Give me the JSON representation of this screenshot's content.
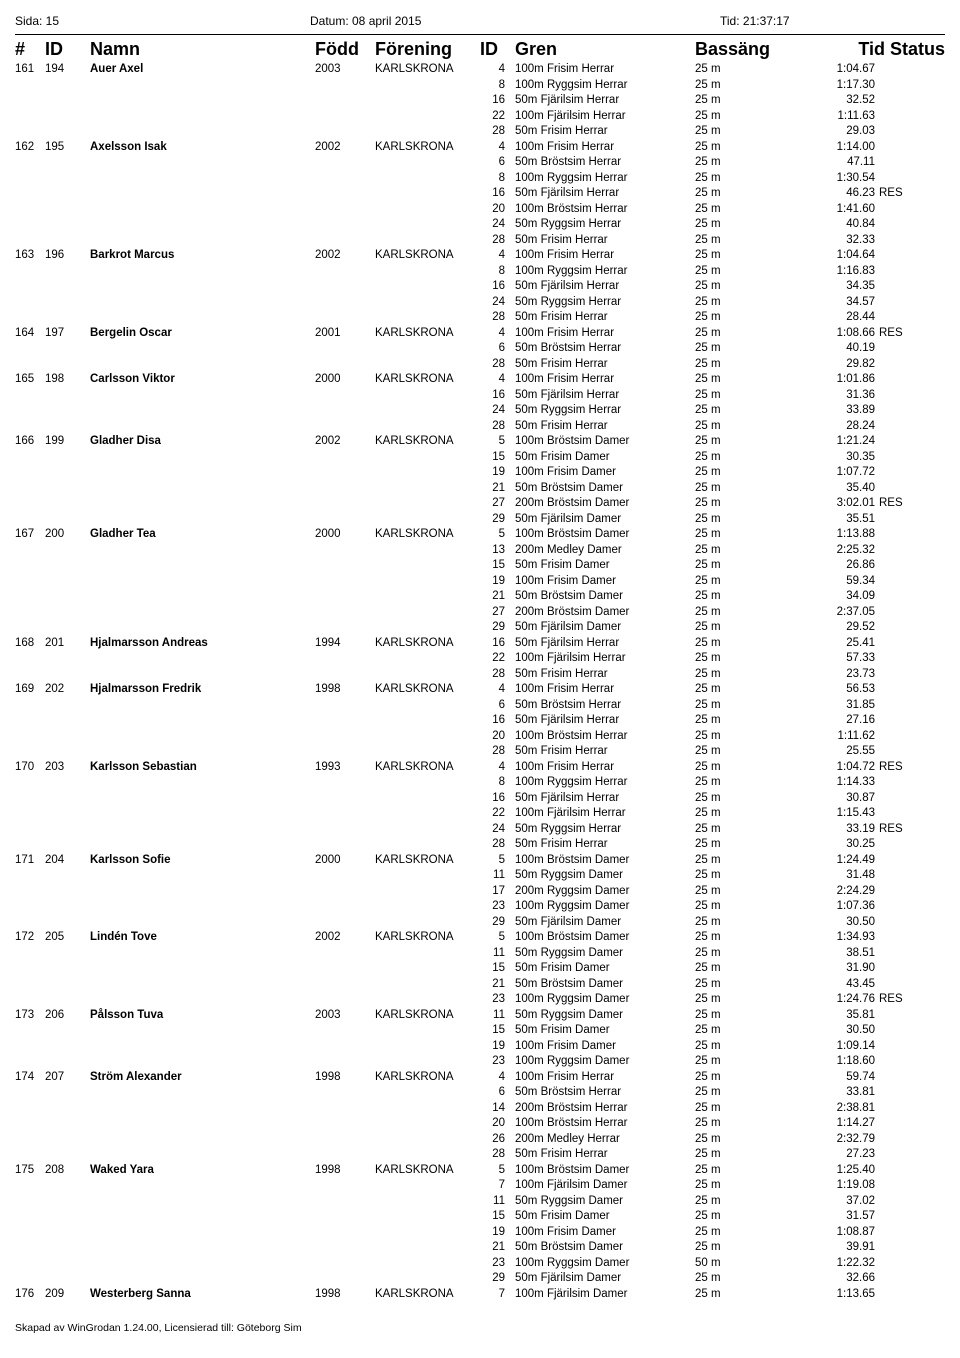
{
  "header": {
    "sida": "Sida: 15",
    "datum": "Datum: 08 april 2015",
    "tid": "Tid: 21:37:17"
  },
  "columns": {
    "num": "#",
    "id": "ID",
    "namn": "Namn",
    "fodd": "Född",
    "foren": "Förening",
    "id2": "ID",
    "gren": "Gren",
    "bass": "Bassäng",
    "tidstatus": "Tid Status"
  },
  "footer": "Skapad av WinGrodan 1.24.00, Licensierad till: Göteborg Sim",
  "people": [
    {
      "num": "161",
      "id": "194",
      "namn": "Auer Axel",
      "fodd": "2003",
      "foren": "KARLSKRONA",
      "events": [
        {
          "id": "4",
          "gren": "100m Frisim Herrar",
          "bass": "25 m",
          "tid": "1:04.67",
          "status": ""
        },
        {
          "id": "8",
          "gren": "100m Ryggsim Herrar",
          "bass": "25 m",
          "tid": "1:17.30",
          "status": ""
        },
        {
          "id": "16",
          "gren": "50m Fjärilsim Herrar",
          "bass": "25 m",
          "tid": "32.52",
          "status": ""
        },
        {
          "id": "22",
          "gren": "100m Fjärilsim Herrar",
          "bass": "25 m",
          "tid": "1:11.63",
          "status": ""
        },
        {
          "id": "28",
          "gren": "50m Frisim Herrar",
          "bass": "25 m",
          "tid": "29.03",
          "status": ""
        }
      ]
    },
    {
      "num": "162",
      "id": "195",
      "namn": "Axelsson Isak",
      "fodd": "2002",
      "foren": "KARLSKRONA",
      "events": [
        {
          "id": "4",
          "gren": "100m Frisim Herrar",
          "bass": "25 m",
          "tid": "1:14.00",
          "status": ""
        },
        {
          "id": "6",
          "gren": "50m Bröstsim Herrar",
          "bass": "25 m",
          "tid": "47.11",
          "status": ""
        },
        {
          "id": "8",
          "gren": "100m Ryggsim Herrar",
          "bass": "25 m",
          "tid": "1:30.54",
          "status": ""
        },
        {
          "id": "16",
          "gren": "50m Fjärilsim Herrar",
          "bass": "25 m",
          "tid": "46.23",
          "status": "RES"
        },
        {
          "id": "20",
          "gren": "100m Bröstsim Herrar",
          "bass": "25 m",
          "tid": "1:41.60",
          "status": ""
        },
        {
          "id": "24",
          "gren": "50m Ryggsim Herrar",
          "bass": "25 m",
          "tid": "40.84",
          "status": ""
        },
        {
          "id": "28",
          "gren": "50m Frisim Herrar",
          "bass": "25 m",
          "tid": "32.33",
          "status": ""
        }
      ]
    },
    {
      "num": "163",
      "id": "196",
      "namn": "Barkrot Marcus",
      "fodd": "2002",
      "foren": "KARLSKRONA",
      "events": [
        {
          "id": "4",
          "gren": "100m Frisim Herrar",
          "bass": "25 m",
          "tid": "1:04.64",
          "status": ""
        },
        {
          "id": "8",
          "gren": "100m Ryggsim Herrar",
          "bass": "25 m",
          "tid": "1:16.83",
          "status": ""
        },
        {
          "id": "16",
          "gren": "50m Fjärilsim Herrar",
          "bass": "25 m",
          "tid": "34.35",
          "status": ""
        },
        {
          "id": "24",
          "gren": "50m Ryggsim Herrar",
          "bass": "25 m",
          "tid": "34.57",
          "status": ""
        },
        {
          "id": "28",
          "gren": "50m Frisim Herrar",
          "bass": "25 m",
          "tid": "28.44",
          "status": ""
        }
      ]
    },
    {
      "num": "164",
      "id": "197",
      "namn": "Bergelin Oscar",
      "fodd": "2001",
      "foren": "KARLSKRONA",
      "events": [
        {
          "id": "4",
          "gren": "100m Frisim Herrar",
          "bass": "25 m",
          "tid": "1:08.66",
          "status": "RES"
        },
        {
          "id": "6",
          "gren": "50m Bröstsim Herrar",
          "bass": "25 m",
          "tid": "40.19",
          "status": ""
        },
        {
          "id": "28",
          "gren": "50m Frisim Herrar",
          "bass": "25 m",
          "tid": "29.82",
          "status": ""
        }
      ]
    },
    {
      "num": "165",
      "id": "198",
      "namn": "Carlsson Viktor",
      "fodd": "2000",
      "foren": "KARLSKRONA",
      "events": [
        {
          "id": "4",
          "gren": "100m Frisim Herrar",
          "bass": "25 m",
          "tid": "1:01.86",
          "status": ""
        },
        {
          "id": "16",
          "gren": "50m Fjärilsim Herrar",
          "bass": "25 m",
          "tid": "31.36",
          "status": ""
        },
        {
          "id": "24",
          "gren": "50m Ryggsim Herrar",
          "bass": "25 m",
          "tid": "33.89",
          "status": ""
        },
        {
          "id": "28",
          "gren": "50m Frisim Herrar",
          "bass": "25 m",
          "tid": "28.24",
          "status": ""
        }
      ]
    },
    {
      "num": "166",
      "id": "199",
      "namn": "Gladher Disa",
      "fodd": "2002",
      "foren": "KARLSKRONA",
      "events": [
        {
          "id": "5",
          "gren": "100m Bröstsim Damer",
          "bass": "25 m",
          "tid": "1:21.24",
          "status": ""
        },
        {
          "id": "15",
          "gren": "50m Frisim Damer",
          "bass": "25 m",
          "tid": "30.35",
          "status": ""
        },
        {
          "id": "19",
          "gren": "100m Frisim Damer",
          "bass": "25 m",
          "tid": "1:07.72",
          "status": ""
        },
        {
          "id": "21",
          "gren": "50m Bröstsim Damer",
          "bass": "25 m",
          "tid": "35.40",
          "status": ""
        },
        {
          "id": "27",
          "gren": "200m Bröstsim Damer",
          "bass": "25 m",
          "tid": "3:02.01",
          "status": "RES"
        },
        {
          "id": "29",
          "gren": "50m Fjärilsim Damer",
          "bass": "25 m",
          "tid": "35.51",
          "status": ""
        }
      ]
    },
    {
      "num": "167",
      "id": "200",
      "namn": "Gladher Tea",
      "fodd": "2000",
      "foren": "KARLSKRONA",
      "events": [
        {
          "id": "5",
          "gren": "100m Bröstsim Damer",
          "bass": "25 m",
          "tid": "1:13.88",
          "status": ""
        },
        {
          "id": "13",
          "gren": "200m Medley Damer",
          "bass": "25 m",
          "tid": "2:25.32",
          "status": ""
        },
        {
          "id": "15",
          "gren": "50m Frisim Damer",
          "bass": "25 m",
          "tid": "26.86",
          "status": ""
        },
        {
          "id": "19",
          "gren": "100m Frisim Damer",
          "bass": "25 m",
          "tid": "59.34",
          "status": ""
        },
        {
          "id": "21",
          "gren": "50m Bröstsim Damer",
          "bass": "25 m",
          "tid": "34.09",
          "status": ""
        },
        {
          "id": "27",
          "gren": "200m Bröstsim Damer",
          "bass": "25 m",
          "tid": "2:37.05",
          "status": ""
        },
        {
          "id": "29",
          "gren": "50m Fjärilsim Damer",
          "bass": "25 m",
          "tid": "29.52",
          "status": ""
        }
      ]
    },
    {
      "num": "168",
      "id": "201",
      "namn": "Hjalmarsson Andreas",
      "fodd": "1994",
      "foren": "KARLSKRONA",
      "events": [
        {
          "id": "16",
          "gren": "50m Fjärilsim Herrar",
          "bass": "25 m",
          "tid": "25.41",
          "status": ""
        },
        {
          "id": "22",
          "gren": "100m Fjärilsim Herrar",
          "bass": "25 m",
          "tid": "57.33",
          "status": ""
        },
        {
          "id": "28",
          "gren": "50m Frisim Herrar",
          "bass": "25 m",
          "tid": "23.73",
          "status": ""
        }
      ]
    },
    {
      "num": "169",
      "id": "202",
      "namn": "Hjalmarsson Fredrik",
      "fodd": "1998",
      "foren": "KARLSKRONA",
      "events": [
        {
          "id": "4",
          "gren": "100m Frisim Herrar",
          "bass": "25 m",
          "tid": "56.53",
          "status": ""
        },
        {
          "id": "6",
          "gren": "50m Bröstsim Herrar",
          "bass": "25 m",
          "tid": "31.85",
          "status": ""
        },
        {
          "id": "16",
          "gren": "50m Fjärilsim Herrar",
          "bass": "25 m",
          "tid": "27.16",
          "status": ""
        },
        {
          "id": "20",
          "gren": "100m Bröstsim Herrar",
          "bass": "25 m",
          "tid": "1:11.62",
          "status": ""
        },
        {
          "id": "28",
          "gren": "50m Frisim Herrar",
          "bass": "25 m",
          "tid": "25.55",
          "status": ""
        }
      ]
    },
    {
      "num": "170",
      "id": "203",
      "namn": "Karlsson Sebastian",
      "fodd": "1993",
      "foren": "KARLSKRONA",
      "events": [
        {
          "id": "4",
          "gren": "100m Frisim Herrar",
          "bass": "25 m",
          "tid": "1:04.72",
          "status": "RES"
        },
        {
          "id": "8",
          "gren": "100m Ryggsim Herrar",
          "bass": "25 m",
          "tid": "1:14.33",
          "status": ""
        },
        {
          "id": "16",
          "gren": "50m Fjärilsim Herrar",
          "bass": "25 m",
          "tid": "30.87",
          "status": ""
        },
        {
          "id": "22",
          "gren": "100m Fjärilsim Herrar",
          "bass": "25 m",
          "tid": "1:15.43",
          "status": ""
        },
        {
          "id": "24",
          "gren": "50m Ryggsim Herrar",
          "bass": "25 m",
          "tid": "33.19",
          "status": "RES"
        },
        {
          "id": "28",
          "gren": "50m Frisim Herrar",
          "bass": "25 m",
          "tid": "30.25",
          "status": ""
        }
      ]
    },
    {
      "num": "171",
      "id": "204",
      "namn": "Karlsson Sofie",
      "fodd": "2000",
      "foren": "KARLSKRONA",
      "events": [
        {
          "id": "5",
          "gren": "100m Bröstsim Damer",
          "bass": "25 m",
          "tid": "1:24.49",
          "status": ""
        },
        {
          "id": "11",
          "gren": "50m Ryggsim Damer",
          "bass": "25 m",
          "tid": "31.48",
          "status": ""
        },
        {
          "id": "17",
          "gren": "200m Ryggsim Damer",
          "bass": "25 m",
          "tid": "2:24.29",
          "status": ""
        },
        {
          "id": "23",
          "gren": "100m Ryggsim Damer",
          "bass": "25 m",
          "tid": "1:07.36",
          "status": ""
        },
        {
          "id": "29",
          "gren": "50m Fjärilsim Damer",
          "bass": "25 m",
          "tid": "30.50",
          "status": ""
        }
      ]
    },
    {
      "num": "172",
      "id": "205",
      "namn": "Lindén Tove",
      "fodd": "2002",
      "foren": "KARLSKRONA",
      "events": [
        {
          "id": "5",
          "gren": "100m Bröstsim Damer",
          "bass": "25 m",
          "tid": "1:34.93",
          "status": ""
        },
        {
          "id": "11",
          "gren": "50m Ryggsim Damer",
          "bass": "25 m",
          "tid": "38.51",
          "status": ""
        },
        {
          "id": "15",
          "gren": "50m Frisim Damer",
          "bass": "25 m",
          "tid": "31.90",
          "status": ""
        },
        {
          "id": "21",
          "gren": "50m Bröstsim Damer",
          "bass": "25 m",
          "tid": "43.45",
          "status": ""
        },
        {
          "id": "23",
          "gren": "100m Ryggsim Damer",
          "bass": "25 m",
          "tid": "1:24.76",
          "status": "RES"
        }
      ]
    },
    {
      "num": "173",
      "id": "206",
      "namn": "Pålsson Tuva",
      "fodd": "2003",
      "foren": "KARLSKRONA",
      "events": [
        {
          "id": "11",
          "gren": "50m Ryggsim Damer",
          "bass": "25 m",
          "tid": "35.81",
          "status": ""
        },
        {
          "id": "15",
          "gren": "50m Frisim Damer",
          "bass": "25 m",
          "tid": "30.50",
          "status": ""
        },
        {
          "id": "19",
          "gren": "100m Frisim Damer",
          "bass": "25 m",
          "tid": "1:09.14",
          "status": ""
        },
        {
          "id": "23",
          "gren": "100m Ryggsim Damer",
          "bass": "25 m",
          "tid": "1:18.60",
          "status": ""
        }
      ]
    },
    {
      "num": "174",
      "id": "207",
      "namn": "Ström Alexander",
      "fodd": "1998",
      "foren": "KARLSKRONA",
      "events": [
        {
          "id": "4",
          "gren": "100m Frisim Herrar",
          "bass": "25 m",
          "tid": "59.74",
          "status": ""
        },
        {
          "id": "6",
          "gren": "50m Bröstsim Herrar",
          "bass": "25 m",
          "tid": "33.81",
          "status": ""
        },
        {
          "id": "14",
          "gren": "200m Bröstsim Herrar",
          "bass": "25 m",
          "tid": "2:38.81",
          "status": ""
        },
        {
          "id": "20",
          "gren": "100m Bröstsim Herrar",
          "bass": "25 m",
          "tid": "1:14.27",
          "status": ""
        },
        {
          "id": "26",
          "gren": "200m Medley Herrar",
          "bass": "25 m",
          "tid": "2:32.79",
          "status": ""
        },
        {
          "id": "28",
          "gren": "50m Frisim Herrar",
          "bass": "25 m",
          "tid": "27.23",
          "status": ""
        }
      ]
    },
    {
      "num": "175",
      "id": "208",
      "namn": "Waked Yara",
      "fodd": "1998",
      "foren": "KARLSKRONA",
      "events": [
        {
          "id": "5",
          "gren": "100m Bröstsim Damer",
          "bass": "25 m",
          "tid": "1:25.40",
          "status": ""
        },
        {
          "id": "7",
          "gren": "100m Fjärilsim Damer",
          "bass": "25 m",
          "tid": "1:19.08",
          "status": ""
        },
        {
          "id": "11",
          "gren": "50m Ryggsim Damer",
          "bass": "25 m",
          "tid": "37.02",
          "status": ""
        },
        {
          "id": "15",
          "gren": "50m Frisim Damer",
          "bass": "25 m",
          "tid": "31.57",
          "status": ""
        },
        {
          "id": "19",
          "gren": "100m Frisim Damer",
          "bass": "25 m",
          "tid": "1:08.87",
          "status": ""
        },
        {
          "id": "21",
          "gren": "50m Bröstsim Damer",
          "bass": "25 m",
          "tid": "39.91",
          "status": ""
        },
        {
          "id": "23",
          "gren": "100m Ryggsim Damer",
          "bass": "50 m",
          "tid": "1:22.32",
          "status": ""
        },
        {
          "id": "29",
          "gren": "50m Fjärilsim Damer",
          "bass": "25 m",
          "tid": "32.66",
          "status": ""
        }
      ]
    },
    {
      "num": "176",
      "id": "209",
      "namn": "Westerberg Sanna",
      "fodd": "1998",
      "foren": "KARLSKRONA",
      "events": [
        {
          "id": "7",
          "gren": "100m Fjärilsim Damer",
          "bass": "25 m",
          "tid": "1:13.65",
          "status": ""
        }
      ]
    }
  ]
}
